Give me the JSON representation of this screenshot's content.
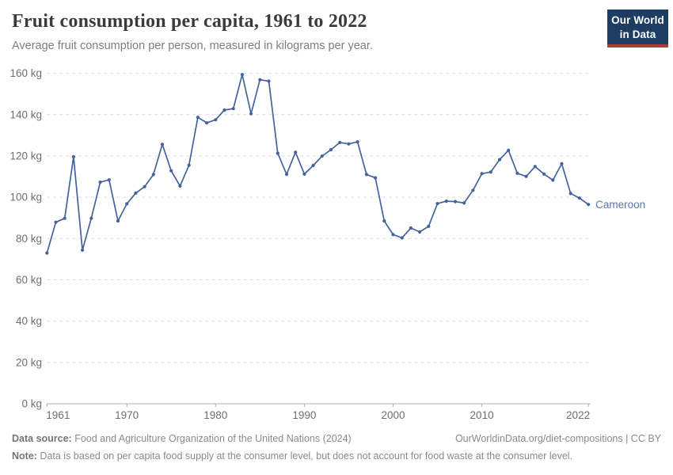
{
  "header": {
    "title": "Fruit consumption per capita, 1961 to 2022",
    "subtitle": "Average fruit consumption per person, measured in kilograms per year.",
    "logo": {
      "line1": "Our World",
      "line2": "in Data"
    }
  },
  "chart_data": {
    "type": "line",
    "title": "Fruit consumption per capita, 1961 to 2022",
    "subtitle": "Average fruit consumption per person, measured in kilograms per year.",
    "unit": "kg",
    "x": [
      1961,
      1962,
      1963,
      1964,
      1965,
      1966,
      1967,
      1968,
      1969,
      1970,
      1971,
      1972,
      1973,
      1974,
      1975,
      1976,
      1977,
      1978,
      1979,
      1980,
      1981,
      1982,
      1983,
      1984,
      1985,
      1986,
      1987,
      1988,
      1989,
      1990,
      1991,
      1992,
      1993,
      1994,
      1995,
      1996,
      1997,
      1998,
      1999,
      2000,
      2001,
      2002,
      2003,
      2004,
      2005,
      2006,
      2007,
      2008,
      2009,
      2010,
      2011,
      2012,
      2013,
      2014,
      2015,
      2016,
      2017,
      2018,
      2019,
      2020,
      2021,
      2022
    ],
    "series": [
      {
        "name": "Cameroon",
        "values": [
          73.0,
          87.9,
          89.8,
          119.6,
          74.4,
          89.8,
          107.3,
          108.4,
          88.5,
          96.8,
          102.0,
          105.1,
          111.0,
          125.6,
          112.8,
          105.4,
          115.5,
          138.7,
          136.0,
          137.5,
          142.2,
          142.9,
          159.4,
          140.4,
          156.9,
          156.2,
          121.3,
          111.1,
          121.8,
          111.2,
          115.4,
          119.9,
          123.0,
          126.5,
          125.8,
          126.8,
          111.0,
          109.4,
          88.5,
          81.9,
          80.3,
          85.1,
          83.2,
          85.9,
          96.9,
          98.1,
          97.9,
          97.2,
          103.4,
          111.4,
          112.2,
          118.2,
          122.7,
          111.6,
          110.1,
          114.9,
          111.2,
          108.3,
          116.2,
          101.8,
          99.6,
          96.5
        ]
      }
    ],
    "ylim": [
      0,
      160
    ],
    "yticks": [
      {
        "v": 0,
        "label": "0 kg"
      },
      {
        "v": 20,
        "label": "20 kg"
      },
      {
        "v": 40,
        "label": "40 kg"
      },
      {
        "v": 60,
        "label": "60 kg"
      },
      {
        "v": 80,
        "label": "80 kg"
      },
      {
        "v": 100,
        "label": "100 kg"
      },
      {
        "v": 120,
        "label": "120 kg"
      },
      {
        "v": 140,
        "label": "140 kg"
      },
      {
        "v": 160,
        "label": "160 kg"
      }
    ],
    "xticks": [
      1961,
      1970,
      1980,
      1990,
      2000,
      2010,
      2022
    ],
    "grid": "horizontal dashed",
    "legend_position": "end-of-line label",
    "entity_label": "Cameroon"
  },
  "colors": {
    "line": "#44639c",
    "series_label": "#5878ae",
    "grid": "#dcdcdc",
    "axis": "#b0b0b0",
    "tick_text": "#6e6e6e",
    "logo_bg": "#1d3d63",
    "logo_red": "#b13b32"
  },
  "footer": {
    "data_source_label": "Data source:",
    "data_source_text": " Food and Agriculture Organization of the United Nations (2024)",
    "link_text": "OurWorldinData.org/diet-compositions | CC BY",
    "note_label": "Note:",
    "note_text": " Data is based on per capita food supply at the consumer level, but does not account for food waste at the consumer level."
  }
}
